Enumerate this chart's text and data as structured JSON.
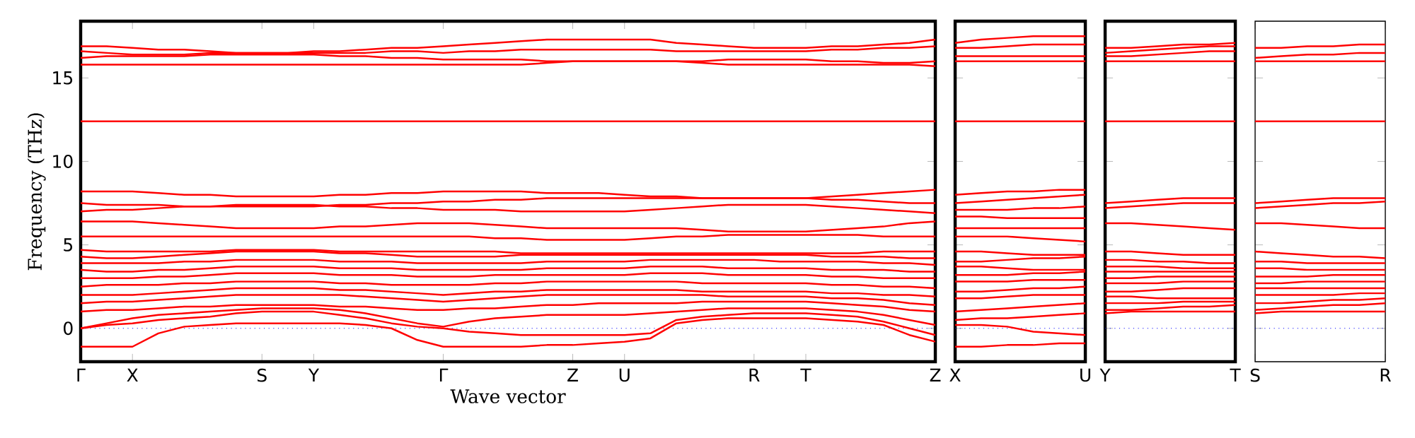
{
  "chart_data": [
    {
      "type": "line",
      "xlabel": "Wave vector",
      "ylabel": "Frequency (THz)",
      "color": "#ff0000",
      "marker": "none",
      "line_style": "solid",
      "ylim": [
        -2,
        18.4
      ],
      "yticks": [
        0,
        5,
        10,
        15
      ],
      "ref_lines": [
        {
          "axis": "y",
          "value": 0,
          "color": "#0000ff",
          "line_style": "dotted"
        }
      ],
      "categories": [
        "Γ",
        null,
        "X",
        null,
        null,
        null,
        null,
        "S",
        null,
        "Y",
        null,
        null,
        null,
        null,
        "Γ",
        null,
        null,
        null,
        null,
        "Z",
        null,
        "U",
        null,
        null,
        null,
        null,
        "R",
        null,
        "T",
        null,
        null,
        null,
        null,
        "Z"
      ],
      "series": [
        {
          "values": [
            -1.1,
            -1.1,
            -1.1,
            -0.3,
            0.1,
            0.2,
            0.3,
            0.3,
            0.3,
            0.3,
            0.3,
            0.2,
            0.0,
            -0.7,
            -1.1,
            -1.1,
            -1.1,
            -1.1,
            -1.0,
            -1.0,
            -0.9,
            -0.8,
            -0.6,
            0.3,
            0.5,
            0.6,
            0.6,
            0.6,
            0.6,
            0.5,
            0.4,
            0.2,
            -0.4,
            -0.8
          ]
        },
        {
          "values": [
            0.0,
            0.2,
            0.3,
            0.5,
            0.6,
            0.7,
            0.9,
            1.0,
            1.0,
            1.0,
            0.8,
            0.6,
            0.3,
            0.1,
            0.0,
            -0.2,
            -0.3,
            -0.4,
            -0.4,
            -0.4,
            -0.4,
            -0.4,
            -0.3,
            0.5,
            0.7,
            0.8,
            0.9,
            0.9,
            0.9,
            0.8,
            0.7,
            0.4,
            0.0,
            -0.4
          ]
        },
        {
          "values": [
            0.0,
            0.3,
            0.6,
            0.8,
            0.9,
            1.0,
            1.1,
            1.2,
            1.2,
            1.2,
            1.1,
            0.9,
            0.6,
            0.3,
            0.1,
            0.4,
            0.6,
            0.7,
            0.8,
            0.8,
            0.8,
            0.8,
            0.9,
            1.0,
            1.1,
            1.2,
            1.2,
            1.2,
            1.2,
            1.1,
            1.0,
            0.8,
            0.5,
            0.2
          ]
        },
        {
          "values": [
            1.0,
            1.1,
            1.1,
            1.2,
            1.3,
            1.3,
            1.4,
            1.4,
            1.4,
            1.4,
            1.3,
            1.3,
            1.2,
            1.1,
            1.1,
            1.2,
            1.2,
            1.3,
            1.4,
            1.4,
            1.5,
            1.5,
            1.5,
            1.5,
            1.6,
            1.6,
            1.6,
            1.6,
            1.6,
            1.5,
            1.4,
            1.3,
            1.1,
            1.0
          ]
        },
        {
          "values": [
            1.5,
            1.6,
            1.6,
            1.7,
            1.8,
            1.9,
            2.0,
            2.0,
            2.0,
            2.0,
            2.0,
            1.9,
            1.8,
            1.7,
            1.6,
            1.7,
            1.8,
            1.9,
            2.0,
            2.0,
            2.0,
            2.0,
            2.0,
            2.0,
            2.0,
            1.9,
            1.9,
            1.9,
            1.9,
            1.8,
            1.8,
            1.7,
            1.5,
            1.4
          ]
        },
        {
          "values": [
            2.0,
            2.0,
            2.0,
            2.1,
            2.2,
            2.3,
            2.4,
            2.4,
            2.4,
            2.4,
            2.3,
            2.3,
            2.2,
            2.1,
            2.0,
            2.1,
            2.2,
            2.2,
            2.3,
            2.3,
            2.3,
            2.3,
            2.3,
            2.3,
            2.2,
            2.2,
            2.2,
            2.2,
            2.2,
            2.1,
            2.1,
            2.0,
            2.0,
            1.9
          ]
        },
        {
          "values": [
            2.5,
            2.6,
            2.6,
            2.6,
            2.7,
            2.7,
            2.8,
            2.8,
            2.8,
            2.8,
            2.7,
            2.7,
            2.6,
            2.6,
            2.6,
            2.6,
            2.7,
            2.7,
            2.8,
            2.8,
            2.8,
            2.8,
            2.8,
            2.8,
            2.7,
            2.7,
            2.7,
            2.7,
            2.7,
            2.6,
            2.6,
            2.5,
            2.5,
            2.4
          ]
        },
        {
          "values": [
            3.0,
            3.0,
            3.0,
            3.1,
            3.1,
            3.2,
            3.3,
            3.3,
            3.3,
            3.3,
            3.2,
            3.2,
            3.2,
            3.1,
            3.1,
            3.1,
            3.2,
            3.2,
            3.2,
            3.2,
            3.2,
            3.2,
            3.3,
            3.3,
            3.3,
            3.2,
            3.2,
            3.2,
            3.2,
            3.1,
            3.1,
            3.0,
            3.0,
            3.0
          ]
        },
        {
          "values": [
            3.5,
            3.4,
            3.4,
            3.5,
            3.5,
            3.6,
            3.7,
            3.7,
            3.7,
            3.7,
            3.6,
            3.6,
            3.6,
            3.5,
            3.5,
            3.5,
            3.5,
            3.5,
            3.6,
            3.6,
            3.6,
            3.6,
            3.7,
            3.7,
            3.7,
            3.6,
            3.6,
            3.6,
            3.6,
            3.5,
            3.5,
            3.5,
            3.4,
            3.4
          ]
        },
        {
          "values": [
            3.9,
            3.9,
            3.9,
            3.9,
            4.0,
            4.0,
            4.1,
            4.1,
            4.1,
            4.1,
            4.0,
            4.0,
            4.0,
            3.9,
            3.9,
            3.9,
            3.9,
            3.9,
            4.0,
            4.0,
            4.0,
            4.0,
            4.1,
            4.1,
            4.1,
            4.1,
            4.1,
            4.0,
            4.0,
            4.0,
            4.0,
            3.9,
            3.9,
            3.8
          ]
        },
        {
          "values": [
            4.3,
            4.2,
            4.2,
            4.3,
            4.4,
            4.5,
            4.6,
            4.6,
            4.6,
            4.6,
            4.5,
            4.5,
            4.4,
            4.3,
            4.3,
            4.3,
            4.3,
            4.4,
            4.4,
            4.4,
            4.4,
            4.4,
            4.4,
            4.4,
            4.4,
            4.4,
            4.4,
            4.4,
            4.4,
            4.3,
            4.3,
            4.3,
            4.2,
            4.2
          ]
        },
        {
          "values": [
            4.7,
            4.6,
            4.6,
            4.6,
            4.6,
            4.6,
            4.7,
            4.7,
            4.7,
            4.7,
            4.6,
            4.6,
            4.6,
            4.6,
            4.6,
            4.6,
            4.6,
            4.5,
            4.5,
            4.5,
            4.5,
            4.5,
            4.5,
            4.5,
            4.5,
            4.5,
            4.5,
            4.5,
            4.5,
            4.5,
            4.5,
            4.6,
            4.6,
            4.6
          ]
        },
        {
          "values": [
            5.5,
            5.5,
            5.5,
            5.5,
            5.5,
            5.5,
            5.5,
            5.5,
            5.5,
            5.5,
            5.5,
            5.5,
            5.5,
            5.5,
            5.5,
            5.5,
            5.4,
            5.4,
            5.3,
            5.3,
            5.3,
            5.3,
            5.4,
            5.5,
            5.5,
            5.6,
            5.6,
            5.6,
            5.6,
            5.6,
            5.6,
            5.5,
            5.5,
            5.5
          ]
        },
        {
          "values": [
            6.4,
            6.4,
            6.4,
            6.3,
            6.2,
            6.1,
            6.0,
            6.0,
            6.0,
            6.0,
            6.1,
            6.1,
            6.2,
            6.3,
            6.3,
            6.3,
            6.2,
            6.1,
            6.0,
            6.0,
            6.0,
            6.0,
            6.0,
            6.0,
            5.9,
            5.8,
            5.8,
            5.8,
            5.8,
            5.9,
            6.0,
            6.1,
            6.3,
            6.4
          ]
        },
        {
          "values": [
            7.0,
            7.1,
            7.1,
            7.2,
            7.3,
            7.3,
            7.4,
            7.4,
            7.4,
            7.4,
            7.3,
            7.3,
            7.2,
            7.2,
            7.1,
            7.1,
            7.1,
            7.0,
            7.0,
            7.0,
            7.0,
            7.0,
            7.1,
            7.2,
            7.3,
            7.4,
            7.4,
            7.4,
            7.4,
            7.3,
            7.2,
            7.1,
            7.0,
            6.9
          ]
        },
        {
          "values": [
            7.5,
            7.4,
            7.4,
            7.4,
            7.3,
            7.3,
            7.3,
            7.3,
            7.3,
            7.3,
            7.4,
            7.4,
            7.5,
            7.5,
            7.6,
            7.6,
            7.7,
            7.7,
            7.8,
            7.8,
            7.8,
            7.8,
            7.8,
            7.8,
            7.8,
            7.8,
            7.8,
            7.8,
            7.8,
            7.7,
            7.7,
            7.6,
            7.5,
            7.5
          ]
        },
        {
          "values": [
            8.2,
            8.2,
            8.2,
            8.1,
            8.0,
            8.0,
            7.9,
            7.9,
            7.9,
            7.9,
            8.0,
            8.0,
            8.1,
            8.1,
            8.2,
            8.2,
            8.2,
            8.2,
            8.1,
            8.1,
            8.1,
            8.0,
            7.9,
            7.9,
            7.8,
            7.8,
            7.8,
            7.8,
            7.8,
            7.9,
            8.0,
            8.1,
            8.2,
            8.3
          ]
        },
        {
          "values": [
            12.4,
            12.4,
            12.4,
            12.4,
            12.4,
            12.4,
            12.4,
            12.4,
            12.4,
            12.4,
            12.4,
            12.4,
            12.4,
            12.4,
            12.4,
            12.4,
            12.4,
            12.4,
            12.4,
            12.4,
            12.4,
            12.4,
            12.4,
            12.4,
            12.4,
            12.4,
            12.4,
            12.4,
            12.4,
            12.4,
            12.4,
            12.4,
            12.4,
            12.4
          ]
        },
        {
          "values": [
            15.8,
            15.8,
            15.8,
            15.8,
            15.8,
            15.8,
            15.8,
            15.8,
            15.8,
            15.8,
            15.8,
            15.8,
            15.8,
            15.8,
            15.8,
            15.8,
            15.8,
            15.8,
            15.9,
            16.0,
            16.0,
            16.0,
            16.0,
            16.0,
            15.9,
            15.8,
            15.8,
            15.8,
            15.8,
            15.8,
            15.8,
            15.8,
            15.8,
            15.7
          ]
        },
        {
          "values": [
            16.2,
            16.3,
            16.3,
            16.3,
            16.3,
            16.4,
            16.4,
            16.4,
            16.4,
            16.4,
            16.3,
            16.3,
            16.2,
            16.2,
            16.1,
            16.1,
            16.1,
            16.1,
            16.0,
            16.0,
            16.0,
            16.0,
            16.0,
            16.0,
            16.0,
            16.1,
            16.1,
            16.1,
            16.1,
            16.0,
            16.0,
            15.9,
            15.9,
            16.0
          ]
        },
        {
          "values": [
            16.6,
            16.5,
            16.4,
            16.4,
            16.4,
            16.5,
            16.5,
            16.5,
            16.5,
            16.5,
            16.5,
            16.5,
            16.6,
            16.6,
            16.5,
            16.6,
            16.6,
            16.7,
            16.7,
            16.7,
            16.7,
            16.7,
            16.7,
            16.6,
            16.6,
            16.6,
            16.6,
            16.6,
            16.6,
            16.7,
            16.7,
            16.8,
            16.8,
            16.9
          ]
        },
        {
          "values": [
            16.9,
            16.9,
            16.8,
            16.7,
            16.7,
            16.6,
            16.5,
            16.5,
            16.5,
            16.6,
            16.6,
            16.7,
            16.8,
            16.8,
            16.9,
            17.0,
            17.1,
            17.2,
            17.3,
            17.3,
            17.3,
            17.3,
            17.3,
            17.1,
            17.0,
            16.9,
            16.8,
            16.8,
            16.8,
            16.9,
            16.9,
            17.0,
            17.1,
            17.3
          ]
        }
      ]
    },
    {
      "type": "line",
      "color": "#ff0000",
      "marker": "none",
      "line_style": "solid",
      "tick_labels": "x",
      "ylim": [
        -2,
        18.4
      ],
      "yticks": [
        0,
        5,
        10,
        15
      ],
      "ref_lines": [
        {
          "axis": "y",
          "value": 0,
          "color": "#0000ff",
          "line_style": "dotted"
        }
      ],
      "categories": [
        "X",
        null,
        null,
        null,
        null,
        "U"
      ],
      "series": [
        {
          "values": [
            -1.1,
            -1.1,
            -1.0,
            -1.0,
            -0.9,
            -0.9
          ]
        },
        {
          "values": [
            0.2,
            0.2,
            0.1,
            -0.2,
            -0.3,
            -0.4
          ]
        },
        {
          "values": [
            0.5,
            0.6,
            0.6,
            0.7,
            0.8,
            0.9
          ]
        },
        {
          "values": [
            1.0,
            1.1,
            1.2,
            1.3,
            1.4,
            1.5
          ]
        },
        {
          "values": [
            1.8,
            1.8,
            1.9,
            2.0,
            2.0,
            2.0
          ]
        },
        {
          "values": [
            2.2,
            2.2,
            2.3,
            2.4,
            2.4,
            2.5
          ]
        },
        {
          "values": [
            2.8,
            2.8,
            2.8,
            2.9,
            2.9,
            2.9
          ]
        },
        {
          "values": [
            3.2,
            3.2,
            3.2,
            3.3,
            3.3,
            3.4
          ]
        },
        {
          "values": [
            3.7,
            3.7,
            3.6,
            3.5,
            3.5,
            3.5
          ]
        },
        {
          "values": [
            4.0,
            4.0,
            4.1,
            4.2,
            4.2,
            4.3
          ]
        },
        {
          "values": [
            4.6,
            4.6,
            4.5,
            4.4,
            4.4,
            4.4
          ]
        },
        {
          "values": [
            5.5,
            5.5,
            5.5,
            5.4,
            5.3,
            5.2
          ]
        },
        {
          "values": [
            6.0,
            6.0,
            6.0,
            6.0,
            6.0,
            6.0
          ]
        },
        {
          "values": [
            6.7,
            6.7,
            6.6,
            6.6,
            6.6,
            6.6
          ]
        },
        {
          "values": [
            7.1,
            7.1,
            7.1,
            7.2,
            7.2,
            7.3
          ]
        },
        {
          "values": [
            7.5,
            7.6,
            7.7,
            7.8,
            7.9,
            8.0
          ]
        },
        {
          "values": [
            8.0,
            8.1,
            8.2,
            8.2,
            8.3,
            8.3
          ]
        },
        {
          "values": [
            12.4,
            12.4,
            12.4,
            12.4,
            12.4,
            12.4
          ]
        },
        {
          "values": [
            16.0,
            16.0,
            16.0,
            16.0,
            16.0,
            16.0
          ]
        },
        {
          "values": [
            16.3,
            16.3,
            16.3,
            16.3,
            16.3,
            16.3
          ]
        },
        {
          "values": [
            16.8,
            16.8,
            16.9,
            17.0,
            17.0,
            17.0
          ]
        },
        {
          "values": [
            17.1,
            17.3,
            17.4,
            17.5,
            17.5,
            17.5
          ]
        }
      ]
    },
    {
      "type": "line",
      "color": "#ff0000",
      "marker": "none",
      "line_style": "solid",
      "tick_labels": "x",
      "ylim": [
        -2,
        18.4
      ],
      "yticks": [
        0,
        5,
        10,
        15
      ],
      "ref_lines": [
        {
          "axis": "y",
          "value": 0,
          "color": "#0000ff",
          "line_style": "dotted"
        }
      ],
      "categories": [
        "Y",
        null,
        null,
        null,
        null,
        "T"
      ],
      "series": [
        {
          "values": [
            0.9,
            1.0,
            1.0,
            1.0,
            1.0,
            1.0
          ]
        },
        {
          "values": [
            1.1,
            1.1,
            1.2,
            1.3,
            1.3,
            1.4
          ]
        },
        {
          "values": [
            1.5,
            1.5,
            1.5,
            1.6,
            1.6,
            1.6
          ]
        },
        {
          "values": [
            1.9,
            1.9,
            1.8,
            1.8,
            1.8,
            1.8
          ]
        },
        {
          "values": [
            2.2,
            2.2,
            2.3,
            2.4,
            2.4,
            2.4
          ]
        },
        {
          "values": [
            2.7,
            2.7,
            2.7,
            2.8,
            2.8,
            2.8
          ]
        },
        {
          "values": [
            3.0,
            3.0,
            3.1,
            3.1,
            3.1,
            3.1
          ]
        },
        {
          "values": [
            3.4,
            3.4,
            3.4,
            3.4,
            3.4,
            3.4
          ]
        },
        {
          "values": [
            3.7,
            3.7,
            3.7,
            3.6,
            3.6,
            3.6
          ]
        },
        {
          "values": [
            4.1,
            4.1,
            4.0,
            4.0,
            3.9,
            3.9
          ]
        },
        {
          "values": [
            4.6,
            4.6,
            4.5,
            4.4,
            4.4,
            4.4
          ]
        },
        {
          "values": [
            6.3,
            6.3,
            6.2,
            6.1,
            6.0,
            5.9
          ]
        },
        {
          "values": [
            7.2,
            7.3,
            7.4,
            7.5,
            7.5,
            7.5
          ]
        },
        {
          "values": [
            7.5,
            7.6,
            7.7,
            7.8,
            7.8,
            7.8
          ]
        },
        {
          "values": [
            12.4,
            12.4,
            12.4,
            12.4,
            12.4,
            12.4
          ]
        },
        {
          "values": [
            16.0,
            16.0,
            16.0,
            16.0,
            16.0,
            16.0
          ]
        },
        {
          "values": [
            16.3,
            16.3,
            16.4,
            16.5,
            16.6,
            16.6
          ]
        },
        {
          "values": [
            16.5,
            16.6,
            16.7,
            16.8,
            16.9,
            16.9
          ]
        },
        {
          "values": [
            16.8,
            16.8,
            16.9,
            17.0,
            17.0,
            17.1
          ]
        }
      ]
    },
    {
      "type": "line",
      "color": "#ff0000",
      "marker": "none",
      "line_style": "solid",
      "tick_labels": "x",
      "ylim": [
        -2,
        18.4
      ],
      "yticks": [
        0,
        5,
        10,
        15
      ],
      "ref_lines": [
        {
          "axis": "y",
          "value": 0,
          "color": "#0000ff",
          "line_style": "dotted"
        }
      ],
      "categories": [
        "S",
        null,
        null,
        null,
        null,
        "R"
      ],
      "series": [
        {
          "values": [
            0.9,
            1.0,
            1.0,
            1.0,
            1.0,
            1.0
          ]
        },
        {
          "values": [
            1.1,
            1.2,
            1.3,
            1.4,
            1.4,
            1.5
          ]
        },
        {
          "values": [
            1.5,
            1.5,
            1.6,
            1.7,
            1.7,
            1.8
          ]
        },
        {
          "values": [
            2.0,
            2.0,
            2.0,
            2.0,
            2.1,
            2.1
          ]
        },
        {
          "values": [
            2.4,
            2.4,
            2.4,
            2.4,
            2.4,
            2.4
          ]
        },
        {
          "values": [
            2.7,
            2.7,
            2.8,
            2.8,
            2.8,
            2.8
          ]
        },
        {
          "values": [
            3.1,
            3.1,
            3.1,
            3.2,
            3.2,
            3.2
          ]
        },
        {
          "values": [
            3.6,
            3.6,
            3.5,
            3.5,
            3.5,
            3.5
          ]
        },
        {
          "values": [
            4.0,
            4.0,
            3.9,
            3.9,
            3.9,
            3.9
          ]
        },
        {
          "values": [
            4.6,
            4.5,
            4.4,
            4.3,
            4.3,
            4.2
          ]
        },
        {
          "values": [
            6.3,
            6.3,
            6.2,
            6.1,
            6.0,
            6.0
          ]
        },
        {
          "values": [
            7.2,
            7.3,
            7.4,
            7.5,
            7.5,
            7.6
          ]
        },
        {
          "values": [
            7.5,
            7.6,
            7.7,
            7.8,
            7.8,
            7.8
          ]
        },
        {
          "values": [
            12.4,
            12.4,
            12.4,
            12.4,
            12.4,
            12.4
          ]
        },
        {
          "values": [
            16.0,
            16.0,
            16.0,
            16.0,
            16.0,
            16.0
          ]
        },
        {
          "values": [
            16.2,
            16.3,
            16.4,
            16.4,
            16.5,
            16.5
          ]
        },
        {
          "values": [
            16.8,
            16.8,
            16.9,
            16.9,
            17.0,
            17.0
          ]
        }
      ]
    }
  ]
}
